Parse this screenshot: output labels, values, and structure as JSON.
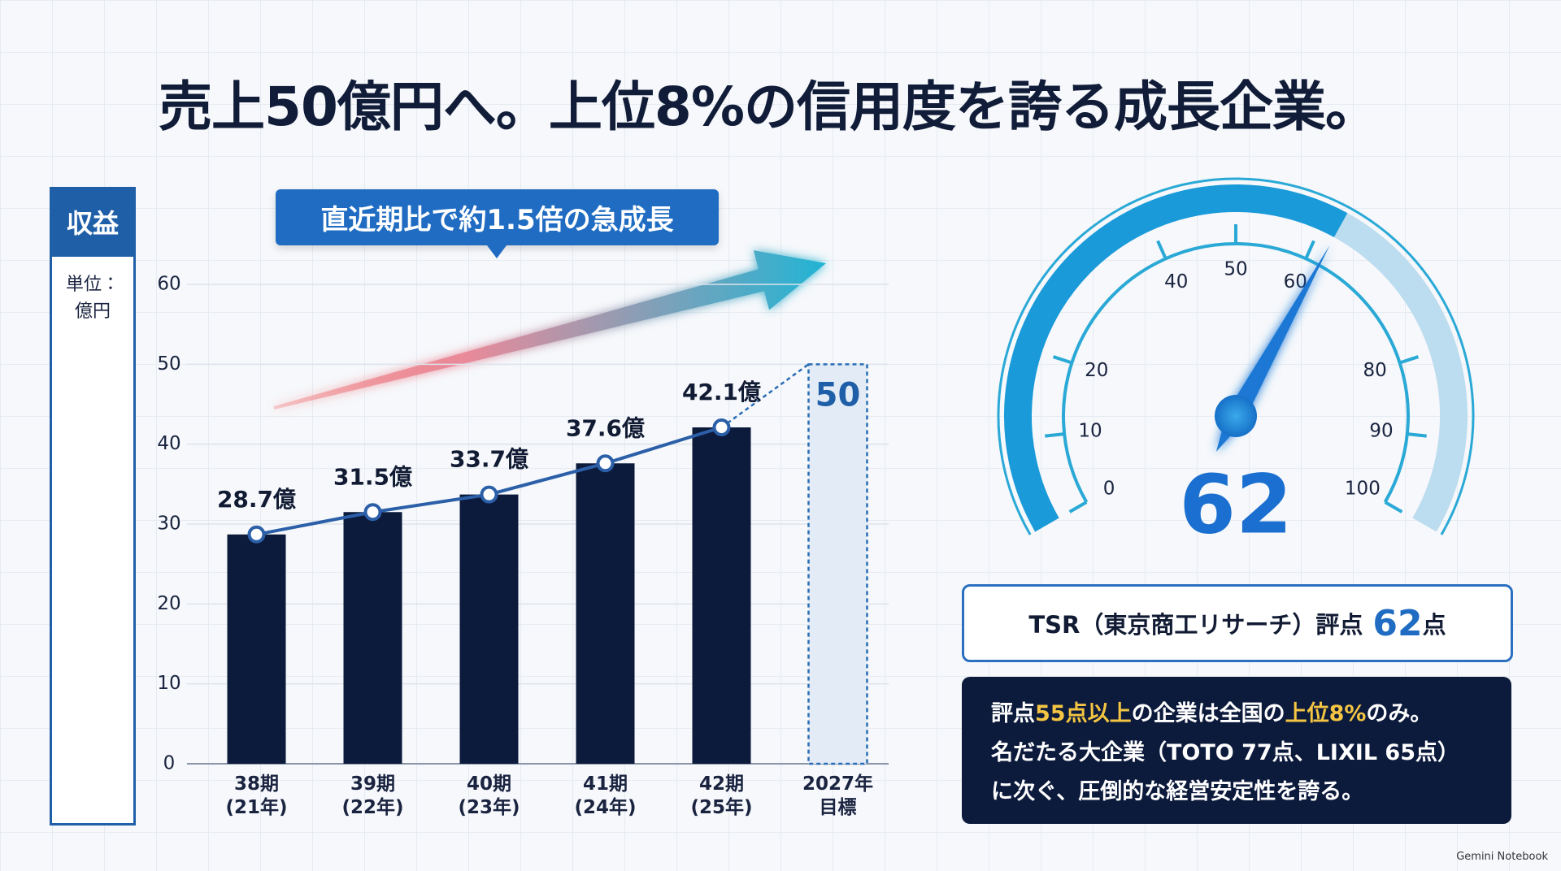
{
  "title": "売上50億円へ。上位8%の信用度を誇る成長企業。",
  "panel": {
    "label": "収益",
    "unit": "単位：億円"
  },
  "callout": "直近期比で約1.5倍の急成長",
  "chart_data": [
    {
      "type": "bar",
      "categories": [
        "38期\n(21年)",
        "39期\n(22年)",
        "40期\n(23年)",
        "41期\n(24年)",
        "42期\n(25年)",
        "2027年\n目標"
      ],
      "series": [
        {
          "color": "#0c1a3c",
          "line_color": "#2b5fa8",
          "values": [
            28.7,
            31.5,
            33.7,
            37.6,
            42.1,
            null
          ],
          "value_labels": [
            "28.7億",
            "31.5億",
            "33.7億",
            "37.6億",
            "42.1億",
            null
          ]
        },
        {
          "color": "#e3ecf6",
          "values": [
            null,
            null,
            null,
            null,
            null,
            50
          ],
          "value_labels": [
            null,
            null,
            null,
            null,
            null,
            "50"
          ]
        }
      ],
      "ylim": [
        0,
        60
      ],
      "yticks": [
        0,
        10,
        20,
        30,
        40,
        50,
        60
      ],
      "grid": true
    },
    {
      "type": "gauge",
      "value": 62,
      "ylim": [
        0,
        100
      ],
      "yticks": [
        0,
        10,
        20,
        40,
        50,
        60,
        80,
        90,
        100
      ],
      "color": "#1a9ad8"
    }
  ],
  "score": {
    "prefix": "TSR（東京商工リサーチ）評点",
    "value": "62",
    "suffix": "点"
  },
  "note": [
    [
      {
        "text": "評点"
      },
      {
        "text": "55点以上",
        "highlight": true
      },
      {
        "text": "の企業は全国の"
      },
      {
        "text": "上位8%",
        "highlight": true
      },
      {
        "text": "のみ。"
      }
    ],
    [
      {
        "text": "名だたる大企業（TOTO 77点、LIXIL 65点）"
      }
    ],
    [
      {
        "text": "に次ぐ、圧倒的な経営安定性を誇る。"
      }
    ]
  ],
  "watermark": "Gemini Notebook"
}
